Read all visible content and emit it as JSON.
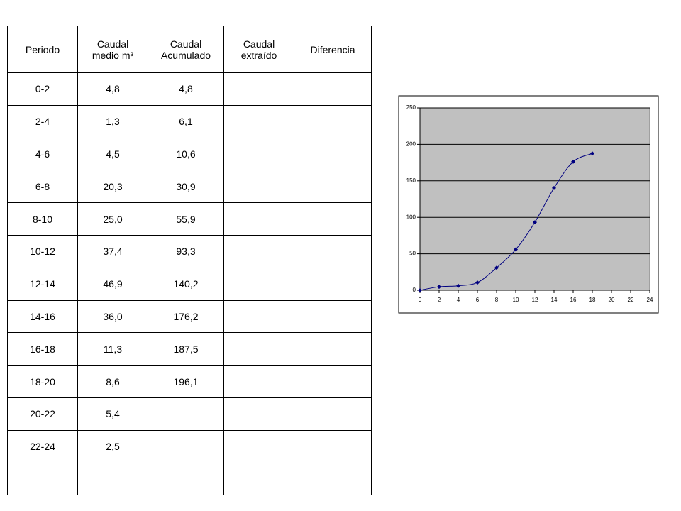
{
  "table": {
    "header": [
      "Periodo",
      "Caudal medio m³",
      "Caudal Acumulado",
      "Caudal extraído",
      "Diferencia"
    ],
    "rows": [
      [
        "0-2",
        "4,8",
        "4,8",
        null,
        null
      ],
      [
        "2-4",
        "1,3",
        "6,1",
        null,
        null
      ],
      [
        "4-6",
        "4,5",
        "10,6",
        null,
        null
      ],
      [
        "6-8",
        "20,3",
        "30,9",
        null,
        null
      ],
      [
        "8-10",
        "25,0",
        "55,9",
        null,
        null
      ],
      [
        "10-12",
        "37,4",
        "93,3",
        null,
        null
      ],
      [
        "12-14",
        "46,9",
        "140,2",
        null,
        null
      ],
      [
        "14-16",
        "36,0",
        "176,2",
        null,
        null
      ],
      [
        "16-18",
        "11,3",
        "187,5",
        null,
        null
      ],
      [
        "18-20",
        "8,6",
        "196,1",
        null,
        null
      ],
      [
        "20-22",
        "5,4",
        null,
        null,
        null
      ],
      [
        "22-24",
        "2,5",
        null,
        null,
        null
      ],
      [
        null,
        null,
        null,
        null,
        null
      ]
    ]
  },
  "chart_data": {
    "type": "line",
    "x": [
      0,
      2,
      4,
      6,
      8,
      10,
      12,
      14,
      16,
      18
    ],
    "series": [
      {
        "color": "#000080",
        "values": [
          0,
          4.8,
          6.1,
          10.6,
          30.9,
          55.9,
          93.3,
          140.2,
          176.2,
          187.5
        ]
      }
    ],
    "xlim": [
      0,
      24
    ],
    "xticks": [
      0,
      2,
      4,
      6,
      8,
      10,
      12,
      14,
      16,
      18,
      20,
      22,
      24
    ],
    "ylim": [
      0,
      250
    ],
    "yticks": [
      0,
      50,
      100,
      150,
      200,
      250
    ],
    "grid": true,
    "plot_background": "#c0c0c0"
  }
}
